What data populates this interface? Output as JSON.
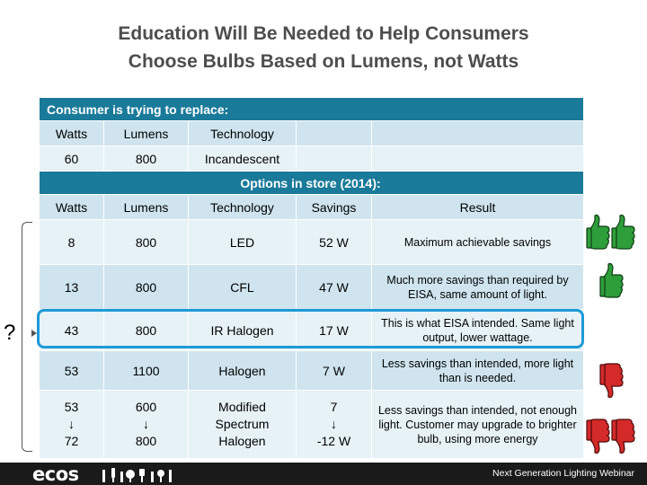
{
  "title_line1": "Education Will Be Needed to Help Consumers",
  "title_line2": "Choose Bulbs Based on Lumens, not Watts",
  "replace_header": "Consumer is trying to replace:",
  "replace_cols": [
    "Watts",
    "Lumens",
    "Technology"
  ],
  "replace_row": {
    "watts": "60",
    "lumens": "800",
    "technology": "Incandescent"
  },
  "options_header": "Options in store (2014):",
  "options_cols": [
    "Watts",
    "Lumens",
    "Technology",
    "Savings",
    "Result"
  ],
  "options_rows": [
    {
      "watts": "8",
      "lumens": "800",
      "technology": "LED",
      "savings": "52 W",
      "result": "Maximum achievable savings"
    },
    {
      "watts": "13",
      "lumens": "800",
      "technology": "CFL",
      "savings": "47 W",
      "result": "Much more savings than required by EISA, same amount of light."
    },
    {
      "watts": "43",
      "lumens": "800",
      "technology": "IR Halogen",
      "savings": "17 W",
      "result": "This is what EISA intended. Same light output, lower wattage."
    },
    {
      "watts": "53",
      "lumens": "1100",
      "technology": "Halogen",
      "savings": "7 W",
      "result": "Less savings than intended, more light than is needed."
    },
    {
      "watts": "53\n↓\n72",
      "lumens": "600\n↓\n800",
      "technology": "Modified\nSpectrum\nHalogen",
      "savings": "7\n↓\n-12 W",
      "result": "Less savings than intended, not enough light.  Customer may upgrade to brighter bulb, using more energy"
    }
  ],
  "question_mark": "?",
  "footer": {
    "logo": "ecos",
    "tagline": "Next Generation Lighting Webinar"
  },
  "colors": {
    "header": "#1a7a99",
    "highlight": "#1e9ad6",
    "thumb_up": "#2e9e3a",
    "thumb_down": "#d42a2a"
  }
}
